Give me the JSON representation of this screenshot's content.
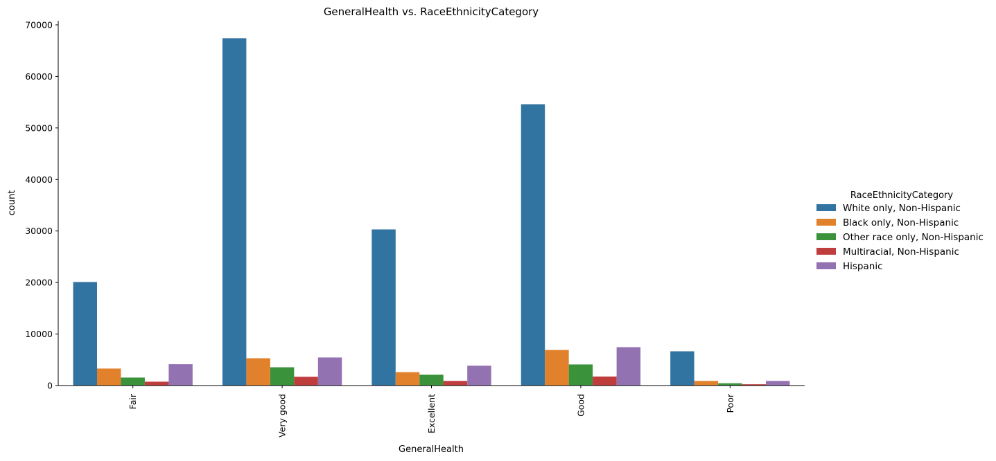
{
  "chart_data": {
    "type": "bar",
    "title": "GeneralHealth vs. RaceEthnicityCategory",
    "xlabel": "GeneralHealth",
    "ylabel": "count",
    "categories": [
      "Fair",
      "Very good",
      "Excellent",
      "Good",
      "Poor"
    ],
    "ylim": [
      0,
      70800
    ],
    "yticks": [
      0,
      10000,
      20000,
      30000,
      40000,
      50000,
      60000,
      70000
    ],
    "grid": false,
    "legend": {
      "title": "RaceEthnicityCategory",
      "placement": "right"
    },
    "series": [
      {
        "name": "White only, Non-Hispanic",
        "color": "#3274a1",
        "values": [
          20100,
          67400,
          30300,
          54600,
          6650
        ]
      },
      {
        "name": "Black only, Non-Hispanic",
        "color": "#e1812c",
        "values": [
          3300,
          5300,
          2600,
          6900,
          900
        ]
      },
      {
        "name": "Other race only, Non-Hispanic",
        "color": "#3a923a",
        "values": [
          1550,
          3550,
          2100,
          4100,
          450
        ]
      },
      {
        "name": "Multiracial, Non-Hispanic",
        "color": "#c03d3e",
        "values": [
          750,
          1700,
          900,
          1750,
          250
        ]
      },
      {
        "name": "Hispanic",
        "color": "#9372b2",
        "values": [
          4150,
          5450,
          3850,
          7450,
          900
        ]
      }
    ]
  }
}
